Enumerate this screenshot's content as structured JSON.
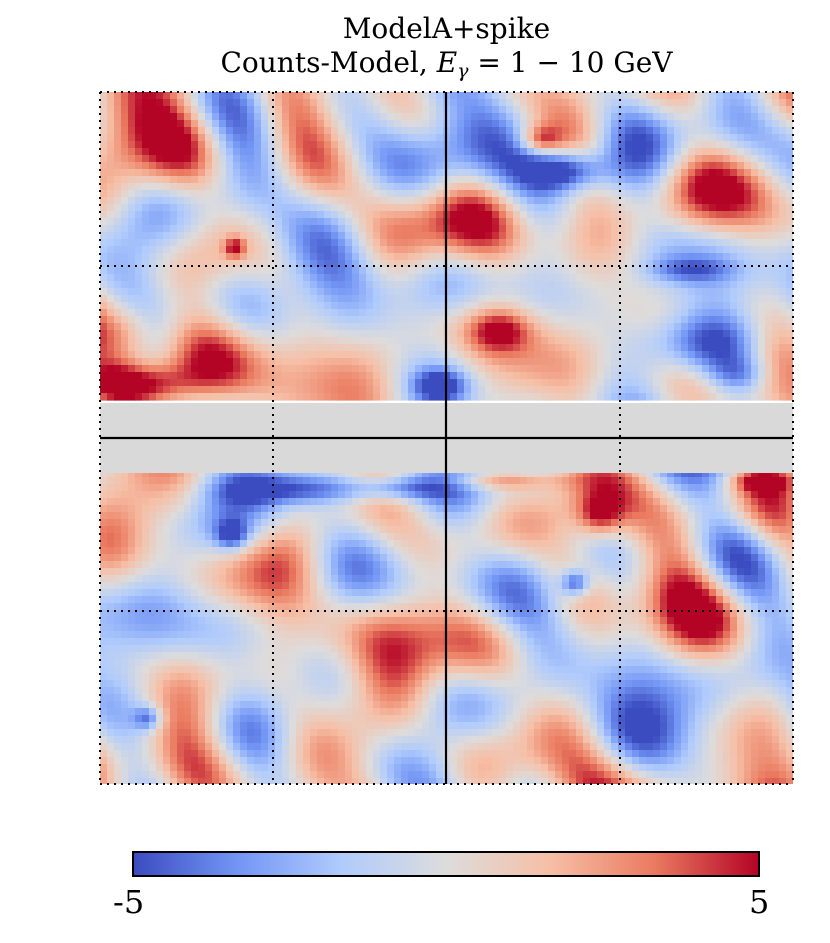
{
  "chart_data": {
    "type": "heatmap",
    "title_line1": "ModelA+spike",
    "title_line2": "Counts-Model, ",
    "title_energy": "E",
    "title_energy_sub": "γ",
    "title_range": " = 1 − 10 GeV",
    "colorbar": {
      "colormap": "coolwarm",
      "min_label": "-5",
      "max_label": "5",
      "vmin": -5,
      "vmax": 5,
      "colors": [
        "#3b4cc0",
        "#7396f5",
        "#b0cbfc",
        "#dddcdc",
        "#f6bfa6",
        "#ea7b60",
        "#b40426"
      ]
    },
    "masked_band_color": "#d9d9d9",
    "grid": "dotted",
    "crosshair": "solid",
    "residual_features": [
      {
        "region": "upper-left",
        "level": 5
      },
      {
        "region": "upper-right-top",
        "level": -5
      },
      {
        "region": "upper-right",
        "level": -4
      },
      {
        "region": "lower-left",
        "level": -4
      },
      {
        "region": "lower-center-right",
        "level": 4
      },
      {
        "region": "lower-center-right",
        "level": -4
      }
    ]
  }
}
